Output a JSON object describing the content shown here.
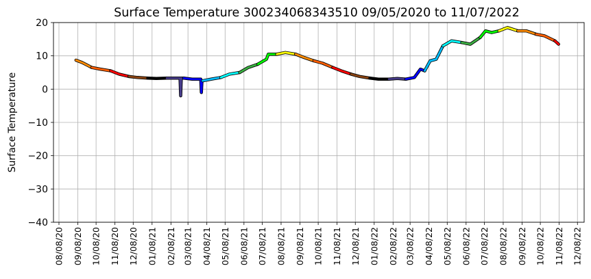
{
  "chart_data": {
    "type": "line",
    "title": "Surface Temperature 300234068343510  09/05/2020 to 11/07/2022",
    "ylabel": "Surface Temperature",
    "grid": true,
    "ylim": [
      -40,
      20
    ],
    "yticks": [
      {
        "value": -40,
        "label": "−40"
      },
      {
        "value": -30,
        "label": "−30"
      },
      {
        "value": -20,
        "label": "−20"
      },
      {
        "value": -10,
        "label": "−10"
      },
      0,
      10,
      20
    ],
    "xlim": [
      "2020-07-30",
      "2022-12-19"
    ],
    "xticks": [
      {
        "value": "2020-08-08",
        "label": "08/08/20"
      },
      {
        "value": "2020-09-08",
        "label": "09/08/20"
      },
      {
        "value": "2020-10-08",
        "label": "10/08/20"
      },
      {
        "value": "2020-11-08",
        "label": "11/08/20"
      },
      {
        "value": "2020-12-08",
        "label": "12/08/20"
      },
      {
        "value": "2021-01-08",
        "label": "01/08/21"
      },
      {
        "value": "2021-02-08",
        "label": "02/08/21"
      },
      {
        "value": "2021-03-08",
        "label": "03/08/21"
      },
      {
        "value": "2021-04-08",
        "label": "04/08/21"
      },
      {
        "value": "2021-05-08",
        "label": "05/08/21"
      },
      {
        "value": "2021-06-08",
        "label": "06/08/21"
      },
      {
        "value": "2021-07-08",
        "label": "07/08/21"
      },
      {
        "value": "2021-08-08",
        "label": "08/08/21"
      },
      {
        "value": "2021-09-08",
        "label": "09/08/21"
      },
      {
        "value": "2021-10-08",
        "label": "10/08/21"
      },
      {
        "value": "2021-11-08",
        "label": "11/08/21"
      },
      {
        "value": "2021-12-08",
        "label": "12/08/21"
      },
      {
        "value": "2022-01-08",
        "label": "01/08/22"
      },
      {
        "value": "2022-02-08",
        "label": "02/08/22"
      },
      {
        "value": "2022-03-08",
        "label": "03/08/22"
      },
      {
        "value": "2022-04-08",
        "label": "04/08/22"
      },
      {
        "value": "2022-05-08",
        "label": "05/08/22"
      },
      {
        "value": "2022-06-08",
        "label": "06/08/22"
      },
      {
        "value": "2022-07-08",
        "label": "07/08/22"
      },
      {
        "value": "2022-08-08",
        "label": "08/08/22"
      },
      {
        "value": "2022-09-08",
        "label": "09/08/22"
      },
      {
        "value": "2022-10-08",
        "label": "10/08/22"
      },
      {
        "value": "2022-11-08",
        "label": "11/08/22"
      },
      {
        "value": "2022-12-08",
        "label": "12/08/22"
      }
    ],
    "series": [
      {
        "color": "#ff8c00",
        "x": [
          "2020-09-05",
          "2020-09-15",
          "2020-10-01"
        ],
        "values": [
          8.7,
          8,
          6.5
        ]
      },
      {
        "color": "#ff6000",
        "x": [
          "2020-10-01",
          "2020-10-15",
          "2020-11-01"
        ],
        "values": [
          6.5,
          6,
          5.5
        ]
      },
      {
        "color": "#ff0000",
        "x": [
          "2020-11-01",
          "2020-11-15",
          "2020-12-01"
        ],
        "values": [
          5.5,
          4.5,
          3.8
        ]
      },
      {
        "color": "#8b4513",
        "x": [
          "2020-12-01",
          "2020-12-15",
          "2021-01-01"
        ],
        "values": [
          3.8,
          3.5,
          3.3
        ]
      },
      {
        "color": "#000000",
        "x": [
          "2021-01-01",
          "2021-01-15",
          "2021-02-01"
        ],
        "values": [
          3.3,
          3.2,
          3.3
        ]
      },
      {
        "color": "#483d8b",
        "x": [
          "2021-02-01",
          "2021-02-15",
          "2021-02-23",
          "2021-02-24",
          "2021-02-25",
          "2021-03-01"
        ],
        "values": [
          3.3,
          3.3,
          3.3,
          -2,
          3.3,
          3.3
        ]
      },
      {
        "color": "#0000ff",
        "x": [
          "2021-03-01",
          "2021-03-15",
          "2021-03-29",
          "2021-03-30",
          "2021-03-31",
          "2021-04-01"
        ],
        "values": [
          3.3,
          3,
          3,
          -1,
          2.5,
          2.5
        ]
      },
      {
        "color": "#00bfff",
        "x": [
          "2021-04-01",
          "2021-04-15",
          "2021-05-01"
        ],
        "values": [
          2.5,
          3,
          3.5
        ]
      },
      {
        "color": "#00ffff",
        "x": [
          "2021-05-01",
          "2021-05-15",
          "2021-06-01"
        ],
        "values": [
          3.5,
          4.5,
          5
        ]
      },
      {
        "color": "#3cb043",
        "x": [
          "2021-06-01",
          "2021-06-15",
          "2021-07-01"
        ],
        "values": [
          5,
          6.5,
          7.5
        ]
      },
      {
        "color": "#00ff00",
        "x": [
          "2021-07-01",
          "2021-07-15",
          "2021-07-18",
          "2021-08-01"
        ],
        "values": [
          7.5,
          9,
          10.5,
          10.5
        ]
      },
      {
        "color": "#ffff00",
        "x": [
          "2021-08-01",
          "2021-08-15",
          "2021-09-01"
        ],
        "values": [
          10.5,
          11,
          10.5
        ]
      },
      {
        "color": "#ff8c00",
        "x": [
          "2021-09-01",
          "2021-09-15",
          "2021-10-01"
        ],
        "values": [
          10.5,
          9.5,
          8.5
        ]
      },
      {
        "color": "#ff6000",
        "x": [
          "2021-10-01",
          "2021-10-15",
          "2021-11-01"
        ],
        "values": [
          8.5,
          7.8,
          6.5
        ]
      },
      {
        "color": "#ff0000",
        "x": [
          "2021-11-01",
          "2021-11-15",
          "2021-12-01"
        ],
        "values": [
          6.5,
          5.5,
          4.5
        ]
      },
      {
        "color": "#8b4513",
        "x": [
          "2021-12-01",
          "2021-12-15",
          "2022-01-01"
        ],
        "values": [
          4.5,
          3.8,
          3.3
        ]
      },
      {
        "color": "#000000",
        "x": [
          "2022-01-01",
          "2022-01-15",
          "2022-02-01"
        ],
        "values": [
          3.3,
          3.0,
          3.0
        ]
      },
      {
        "color": "#483d8b",
        "x": [
          "2022-02-01",
          "2022-02-15",
          "2022-03-01"
        ],
        "values": [
          3.0,
          3.2,
          3.0
        ]
      },
      {
        "color": "#0000ff",
        "x": [
          "2022-03-01",
          "2022-03-15",
          "2022-03-25",
          "2022-04-01"
        ],
        "values": [
          3.0,
          3.5,
          6,
          5.5
        ]
      },
      {
        "color": "#00bfff",
        "x": [
          "2022-04-01",
          "2022-04-10",
          "2022-04-20",
          "2022-05-01"
        ],
        "values": [
          5.5,
          8.5,
          9,
          13
        ]
      },
      {
        "color": "#00ffff",
        "x": [
          "2022-05-01",
          "2022-05-15",
          "2022-06-01"
        ],
        "values": [
          13,
          14.5,
          14
        ]
      },
      {
        "color": "#3cb043",
        "x": [
          "2022-06-01",
          "2022-06-15",
          "2022-07-01"
        ],
        "values": [
          14,
          13.5,
          15.5
        ]
      },
      {
        "color": "#00ff00",
        "x": [
          "2022-07-01",
          "2022-07-10",
          "2022-07-20",
          "2022-08-01"
        ],
        "values": [
          15.5,
          17.5,
          17,
          17.5
        ]
      },
      {
        "color": "#ffff00",
        "x": [
          "2022-08-01",
          "2022-08-15",
          "2022-09-01"
        ],
        "values": [
          17.5,
          18.5,
          17.5
        ]
      },
      {
        "color": "#ff8c00",
        "x": [
          "2022-09-01",
          "2022-09-15",
          "2022-10-01"
        ],
        "values": [
          17.5,
          17.5,
          16.5
        ]
      },
      {
        "color": "#ff6000",
        "x": [
          "2022-10-01",
          "2022-10-15",
          "2022-11-01"
        ],
        "values": [
          16.5,
          16,
          14.5
        ]
      },
      {
        "color": "#ff0000",
        "x": [
          "2022-11-01",
          "2022-11-07"
        ],
        "values": [
          14.5,
          13.5
        ]
      }
    ]
  }
}
